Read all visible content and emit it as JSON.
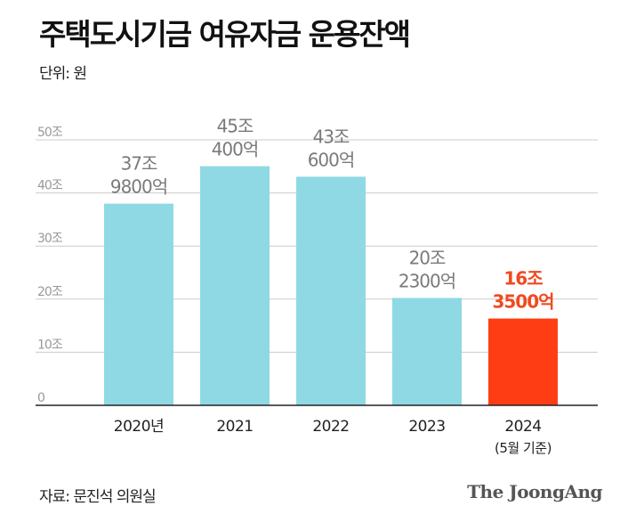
{
  "header": {
    "title": "주택도시기금 여유자금 운용잔액",
    "unit": "단위: 원"
  },
  "footer": {
    "source": "자료: 문진석 의원실",
    "brand": "The JoongAng"
  },
  "colors": {
    "bar": "#8fd9e4",
    "highlight": "#ff3d14",
    "highlight_text": "#f04a1f",
    "label": "#7a7a7a"
  },
  "chart_data": {
    "type": "bar",
    "categories": [
      "2020년",
      "2021",
      "2022",
      "2023",
      "2024"
    ],
    "category_sublabels": [
      "",
      "",
      "",
      "",
      "(5월 기준)"
    ],
    "values": [
      37.98,
      45.04,
      43.06,
      20.23,
      16.35
    ],
    "value_labels": [
      [
        "37조",
        "9800억"
      ],
      [
        "45조",
        "400억"
      ],
      [
        "43조",
        "600억"
      ],
      [
        "20조",
        "2300억"
      ],
      [
        "16조",
        "3500억"
      ]
    ],
    "highlight_index": 4,
    "yticks": [
      0,
      10,
      20,
      30,
      40,
      50
    ],
    "ytick_labels": [
      "0",
      "10조",
      "20조",
      "30조",
      "40조",
      "50조"
    ],
    "ylim": [
      0,
      50
    ],
    "grid": true
  }
}
